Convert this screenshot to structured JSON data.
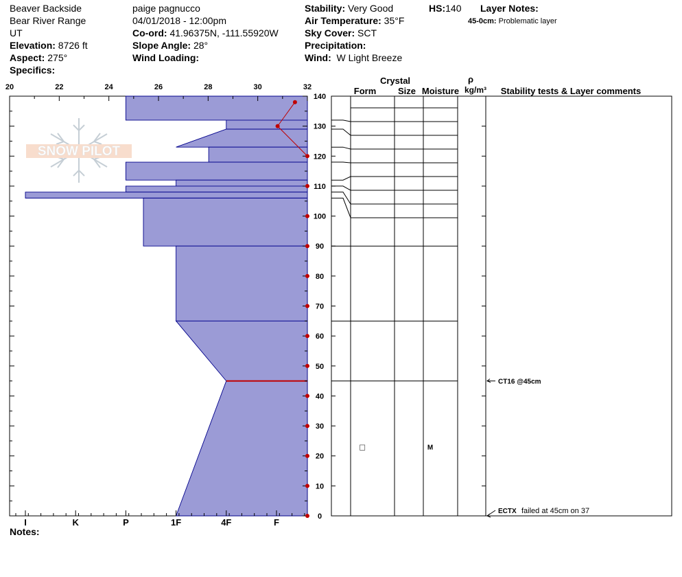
{
  "header": {
    "location": "Beaver Backside",
    "range": "Bear River Range",
    "state": "UT",
    "elevation_label": "Elevation:",
    "elevation": "8726 ft",
    "aspect_label": "Aspect:",
    "aspect": "275°",
    "specifics_label": "Specifics:",
    "observer": "paige pagnucco",
    "datetime": "04/01/2018 - 12:00pm",
    "coord_label": "Co-ord:",
    "coord": "41.96375N, -111.55920W",
    "slope_label": "Slope Angle:",
    "slope": "28°",
    "wind_loading_label": "Wind Loading:",
    "stability_label": "Stability:",
    "stability": "Very Good",
    "air_temp_label": "Air Temperature:",
    "air_temp": "35°F",
    "sky_label": "Sky Cover:",
    "sky": "SCT",
    "precip_label": "Precipitation:",
    "wind_label": "Wind:",
    "wind": "W Light Breeze",
    "hs_label": "HS:",
    "hs": "140",
    "layer_notes_label": "Layer Notes:",
    "layer_note_depth": "45-0cm:",
    "layer_note_text": "Problematic layer",
    "notes_label": "Notes:"
  },
  "logo_text": "SNOW PILOT",
  "columns": {
    "crystal": "Crystal",
    "form": "Form",
    "size": "Size",
    "moisture": "Moisture",
    "rho": "ρ",
    "density_unit": "kg/m³",
    "stability_header": "Stability tests & Layer comments"
  },
  "chart_data": {
    "type": "snow-profile",
    "temp_axis": {
      "min": 20,
      "max": 32,
      "ticks": [
        "20",
        "22",
        "24",
        "26",
        "28",
        "30",
        "32"
      ]
    },
    "depth_axis": {
      "min": 0,
      "max": 140,
      "ticks": [
        "0",
        "10",
        "20",
        "30",
        "40",
        "50",
        "60",
        "70",
        "80",
        "90",
        "100",
        "110",
        "120",
        "130",
        "140"
      ]
    },
    "hardness_axis": {
      "ticks": [
        "I",
        "K",
        "P",
        "1F",
        "4F",
        "F"
      ],
      "ticks_value": [
        0,
        1,
        2,
        3,
        4,
        5
      ],
      "max": 5.7
    },
    "temperature_points": [
      {
        "depth": 138,
        "temp": 31.5
      },
      {
        "depth": 130,
        "temp": 30.8
      },
      {
        "depth": 120,
        "temp": 32
      },
      {
        "depth": 110,
        "temp": 32
      },
      {
        "depth": 100,
        "temp": 32
      },
      {
        "depth": 90,
        "temp": 32
      },
      {
        "depth": 80,
        "temp": 32
      },
      {
        "depth": 70,
        "temp": 32
      },
      {
        "depth": 60,
        "temp": 32
      },
      {
        "depth": 50,
        "temp": 32
      },
      {
        "depth": 40,
        "temp": 32
      },
      {
        "depth": 30,
        "temp": 32
      },
      {
        "depth": 20,
        "temp": 32
      },
      {
        "depth": 10,
        "temp": 32
      },
      {
        "depth": 0,
        "temp": 32
      }
    ],
    "hardness_layers": [
      {
        "top": 140,
        "bottom": 132,
        "hard_top": 2,
        "hard_bottom": 2
      },
      {
        "top": 132,
        "bottom": 129,
        "hard_top": 4,
        "hard_bottom": 4
      },
      {
        "top": 129,
        "bottom": 123,
        "hard_top": 4,
        "hard_bottom": 3
      },
      {
        "top": 123,
        "bottom": 118,
        "hard_top": 3.65,
        "hard_bottom": 3.65
      },
      {
        "top": 118,
        "bottom": 112,
        "hard_top": 2,
        "hard_bottom": 2
      },
      {
        "top": 112,
        "bottom": 110,
        "hard_top": 3,
        "hard_bottom": 3
      },
      {
        "top": 110,
        "bottom": 108,
        "hard_top": 2,
        "hard_bottom": 2
      },
      {
        "top": 108,
        "bottom": 106,
        "hard_top": 0,
        "hard_bottom": 0
      },
      {
        "top": 106,
        "bottom": 90,
        "hard_top": 2.35,
        "hard_bottom": 2.35
      },
      {
        "top": 90,
        "bottom": 65,
        "hard_top": 3,
        "hard_bottom": 3
      },
      {
        "top": 65,
        "bottom": 45,
        "hard_top": 3,
        "hard_bottom": 4
      },
      {
        "top": 45,
        "bottom": 0,
        "hard_top": 4,
        "hard_bottom": 3
      }
    ],
    "problem_layer_depth": 45,
    "layer_boundaries": [
      132,
      129,
      123,
      118,
      112,
      110,
      108,
      106,
      90,
      65,
      45
    ],
    "crystal": [
      {
        "depth": 23,
        "form_symbol": "□",
        "moisture": "M"
      }
    ],
    "stability_tests": [
      {
        "depth": 45,
        "code": "CT16 @45cm",
        "comment": ""
      },
      {
        "depth": 0,
        "code": "ECTX",
        "comment": "failed at 45cm on 37"
      }
    ],
    "colors": {
      "fill": "#9b9bd6",
      "stroke": "#00008b",
      "temp": "#c00000"
    }
  }
}
